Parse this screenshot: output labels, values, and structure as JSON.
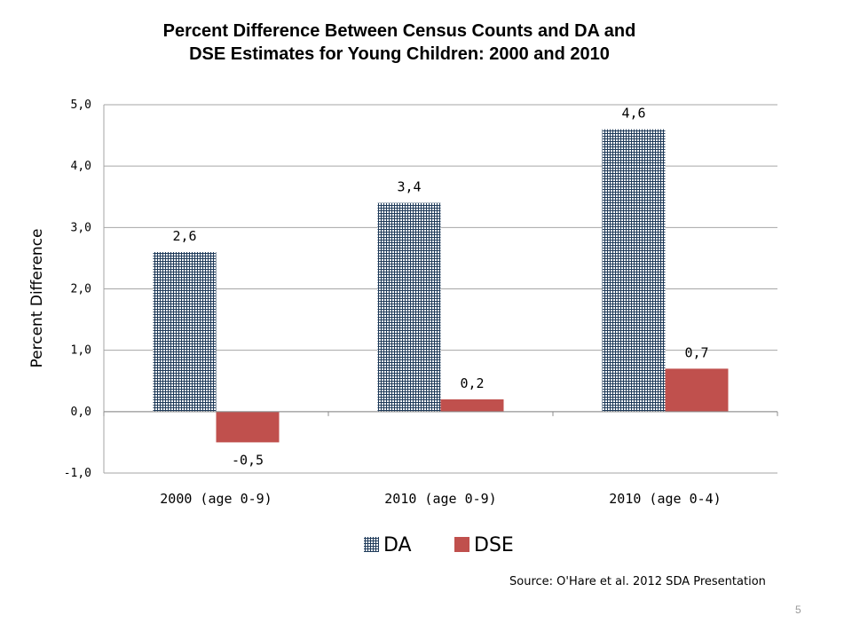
{
  "slide": {
    "title_line1": "Percent Difference Between Census Counts and DA and",
    "title_line2": "DSE Estimates for Young Children: 2000 and 2010",
    "source": "Source: O'Hare et al. 2012 SDA Presentation",
    "page_number": "5"
  },
  "chart_data": {
    "type": "bar",
    "title": "Percent Difference Between Census Counts and DA and DSE Estimates for Young Children: 2000 and 2010",
    "xlabel": "",
    "ylabel": "Percent Difference",
    "categories": [
      "2000 (age 0-9)",
      "2010 (age 0-9)",
      "2010 (age 0-4)"
    ],
    "series": [
      {
        "name": "DA",
        "values": [
          2.6,
          3.4,
          4.6
        ],
        "labels": [
          "2,6",
          "3,4",
          "4,6"
        ],
        "color": "#1f3b5a",
        "fill": "crosshatch"
      },
      {
        "name": "DSE",
        "values": [
          -0.5,
          0.2,
          0.7
        ],
        "labels": [
          "-0,5",
          "0,2",
          "0,7"
        ],
        "color": "#c0504d",
        "fill": "solid"
      }
    ],
    "ylim": [
      -1.0,
      5.0
    ],
    "yticks": [
      -1.0,
      0.0,
      1.0,
      2.0,
      3.0,
      4.0,
      5.0
    ],
    "ytick_labels": [
      "-1,0",
      "0,0",
      "1,0",
      "2,0",
      "3,0",
      "4,0",
      "5,0"
    ],
    "grid": true,
    "legend": "bottom-center"
  }
}
